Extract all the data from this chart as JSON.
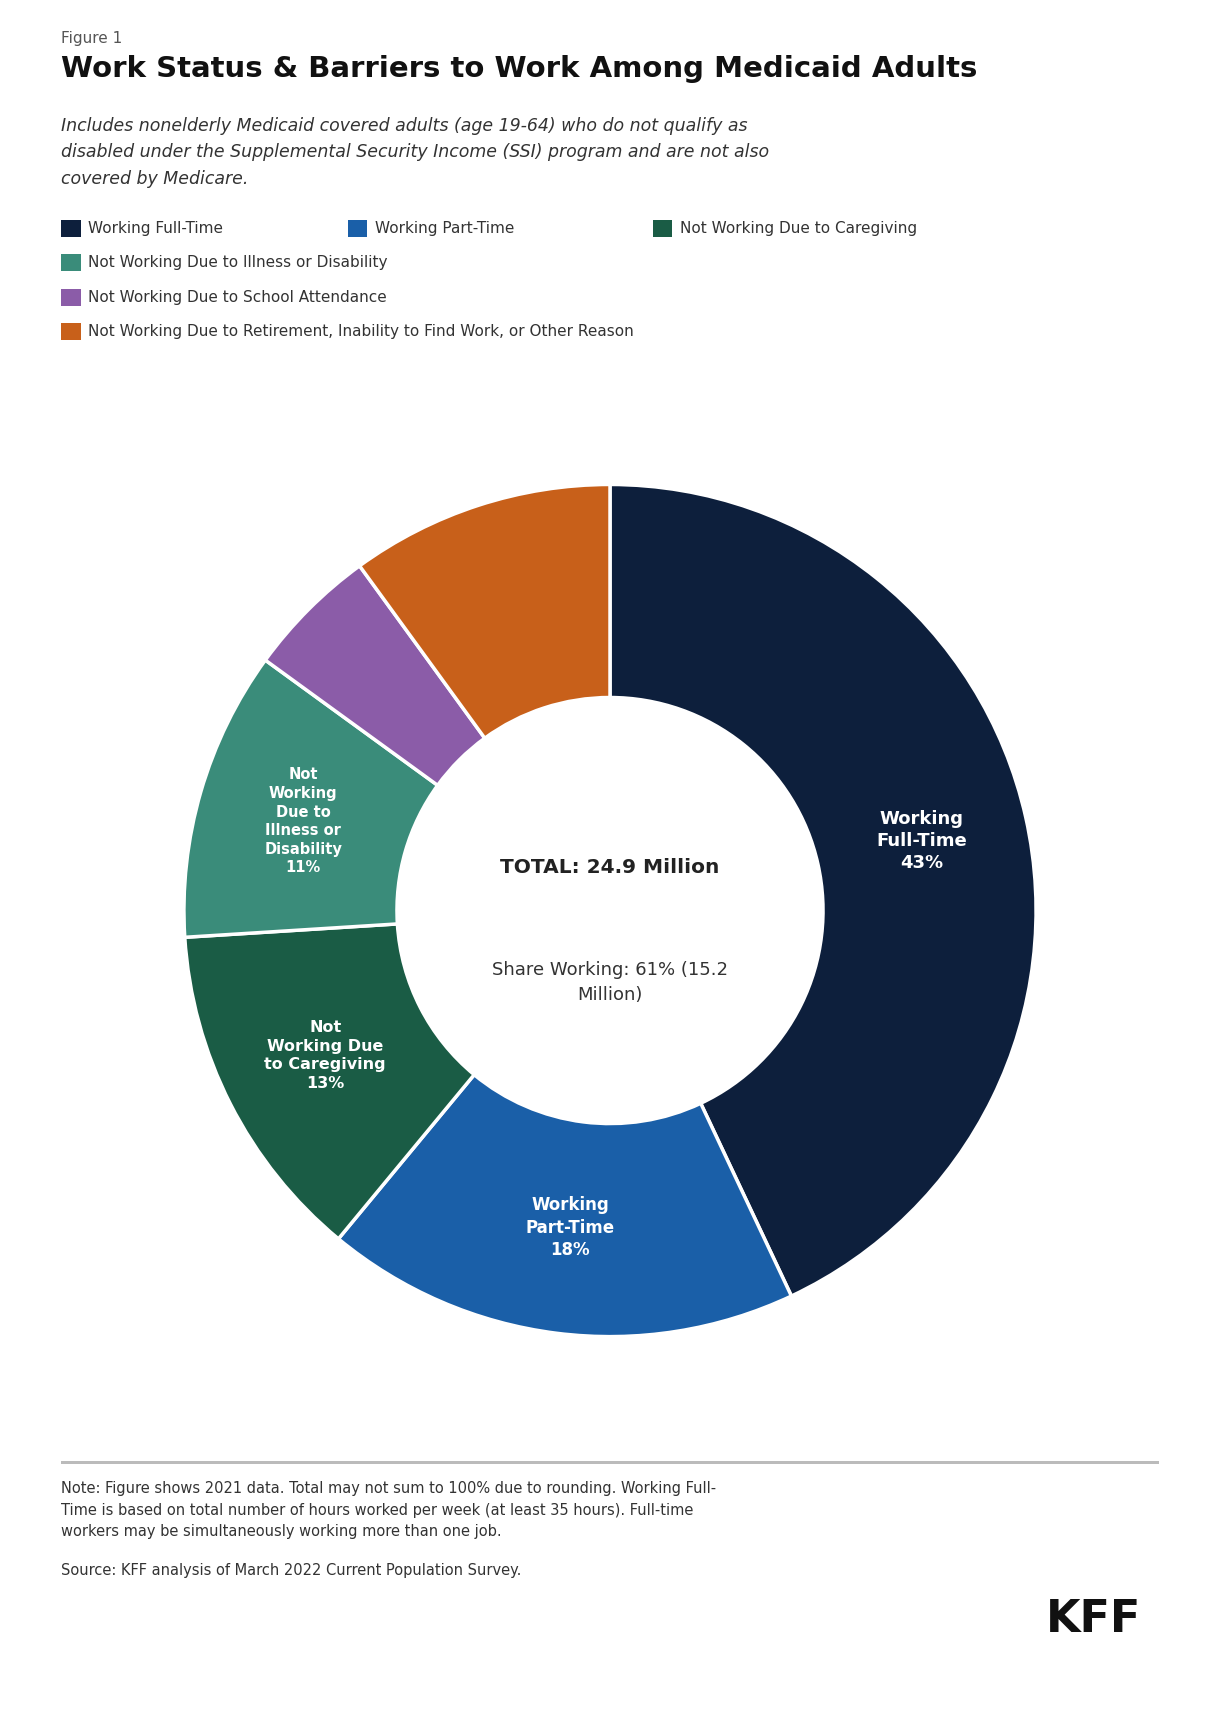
{
  "figure_label": "Figure 1",
  "title": "Work Status & Barriers to Work Among Medicaid Adults",
  "subtitle": "Includes nonelderly Medicaid covered adults (age 19-64) who do not qualify as\ndisabled under the Supplemental Security Income (SSI) program and are not also\ncovered by Medicare.",
  "slices": [
    {
      "label": "Working\nFull-Time\n43%",
      "value": 43,
      "color": "#0d1f3c",
      "legend": "Working Full-Time",
      "show_label": true
    },
    {
      "label": "Working\nPart-Time\n18%",
      "value": 18,
      "color": "#1a5fa8",
      "legend": "Working Part-Time",
      "show_label": true
    },
    {
      "label": "Not\nWorking Due\nto Caregiving\n13%",
      "value": 13,
      "color": "#1a5c45",
      "legend": "Not Working Due to Caregiving",
      "show_label": true
    },
    {
      "label": "Not\nWorking\nDue to\nIllness or\nDisability\n11%",
      "value": 11,
      "color": "#3a8c7a",
      "legend": "Not Working Due to Illness or Disability",
      "show_label": true
    },
    {
      "label": "",
      "value": 5,
      "color": "#8b5ca8",
      "legend": "Not Working Due to School Attendance",
      "show_label": false
    },
    {
      "label": "",
      "value": 10,
      "color": "#c8601a",
      "legend": "Not Working Due to Retirement, Inability to Find Work, or Other Reason",
      "show_label": false
    }
  ],
  "center_text_line1": "TOTAL: 24.9 Million",
  "center_text_line2": "Share Working: 61% (15.2\nMillion)",
  "note": "Note: Figure shows 2021 data. Total may not sum to 100% due to rounding. Working Full-\nTime is based on total number of hours worked per week (at least 35 hours). Full-time\nworkers may be simultaneously working more than one job.",
  "source": "Source: KFF analysis of March 2022 Current Population Survey.",
  "kff_label": "KFF",
  "background_color": "#ffffff",
  "text_color": "#333333",
  "legend_items": [
    {
      "color": "#0d1f3c",
      "text": "Working Full-Time"
    },
    {
      "color": "#1a5fa8",
      "text": "Working Part-Time"
    },
    {
      "color": "#1a5c45",
      "text": "Not Working Due to Caregiving"
    },
    {
      "color": "#3a8c7a",
      "text": "Not Working Due to Illness or Disability"
    },
    {
      "color": "#8b5ca8",
      "text": "Not Working Due to School Attendance"
    },
    {
      "color": "#c8601a",
      "text": "Not Working Due to Retirement, Inability to Find Work, or Other Reason"
    }
  ]
}
